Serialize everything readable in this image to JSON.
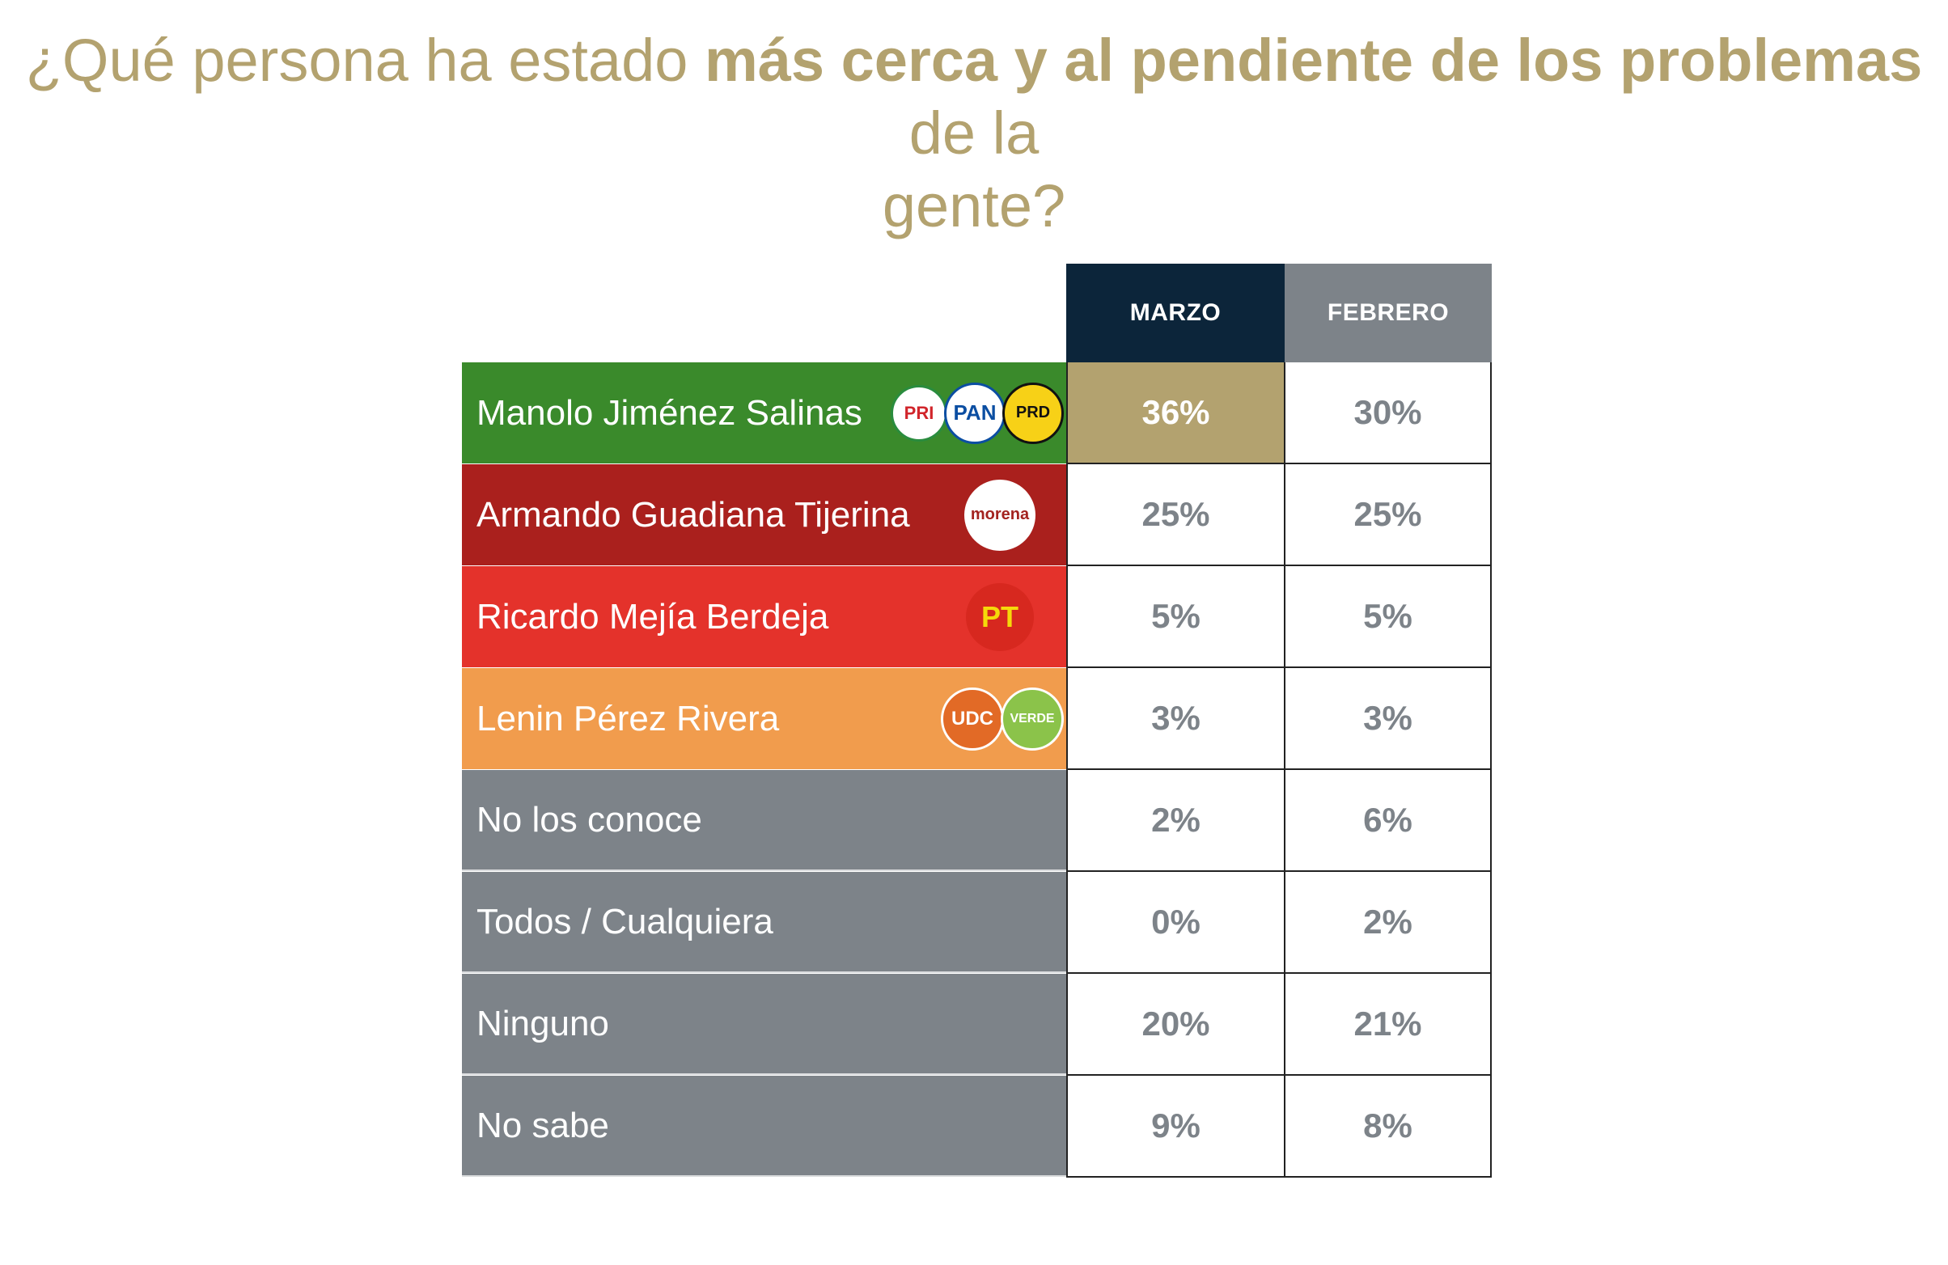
{
  "title": {
    "part1": "¿Qué persona ha estado ",
    "bold": "más cerca y al pendiente de los problemas",
    "part2": " de la",
    "line2": "gente?"
  },
  "chart_data": {
    "type": "table",
    "columns": [
      "MARZO",
      "FEBRERO"
    ],
    "rows": [
      {
        "label": "Manolo Jiménez Salinas",
        "parties": [
          "PRI",
          "PAN",
          "PRD"
        ],
        "values": [
          "36%",
          "30%"
        ],
        "color": "#3a8a2b"
      },
      {
        "label": "Armando Guadiana Tijerina",
        "parties": [
          "morena"
        ],
        "values": [
          "25%",
          "25%"
        ],
        "color": "#aa201d"
      },
      {
        "label": "Ricardo Mejía Berdeja",
        "parties": [
          "PT"
        ],
        "values": [
          "5%",
          "5%"
        ],
        "color": "#e4322b"
      },
      {
        "label": "Lenin Pérez Rivera",
        "parties": [
          "UDC",
          "VERDE"
        ],
        "values": [
          "3%",
          "3%"
        ],
        "color": "#f19c4d"
      },
      {
        "label": "No los conoce",
        "values": [
          "2%",
          "6%"
        ],
        "color": "#7d8389"
      },
      {
        "label": "Todos / Cualquiera",
        "values": [
          "0%",
          "2%"
        ],
        "color": "#7d8389"
      },
      {
        "label": "Ninguno",
        "values": [
          "20%",
          "21%"
        ],
        "color": "#7d8389"
      },
      {
        "label": "No sabe",
        "values": [
          "9%",
          "8%"
        ],
        "color": "#7d8389"
      }
    ],
    "highlight": {
      "row": 0,
      "column": 0,
      "color": "#b3a26f"
    }
  }
}
